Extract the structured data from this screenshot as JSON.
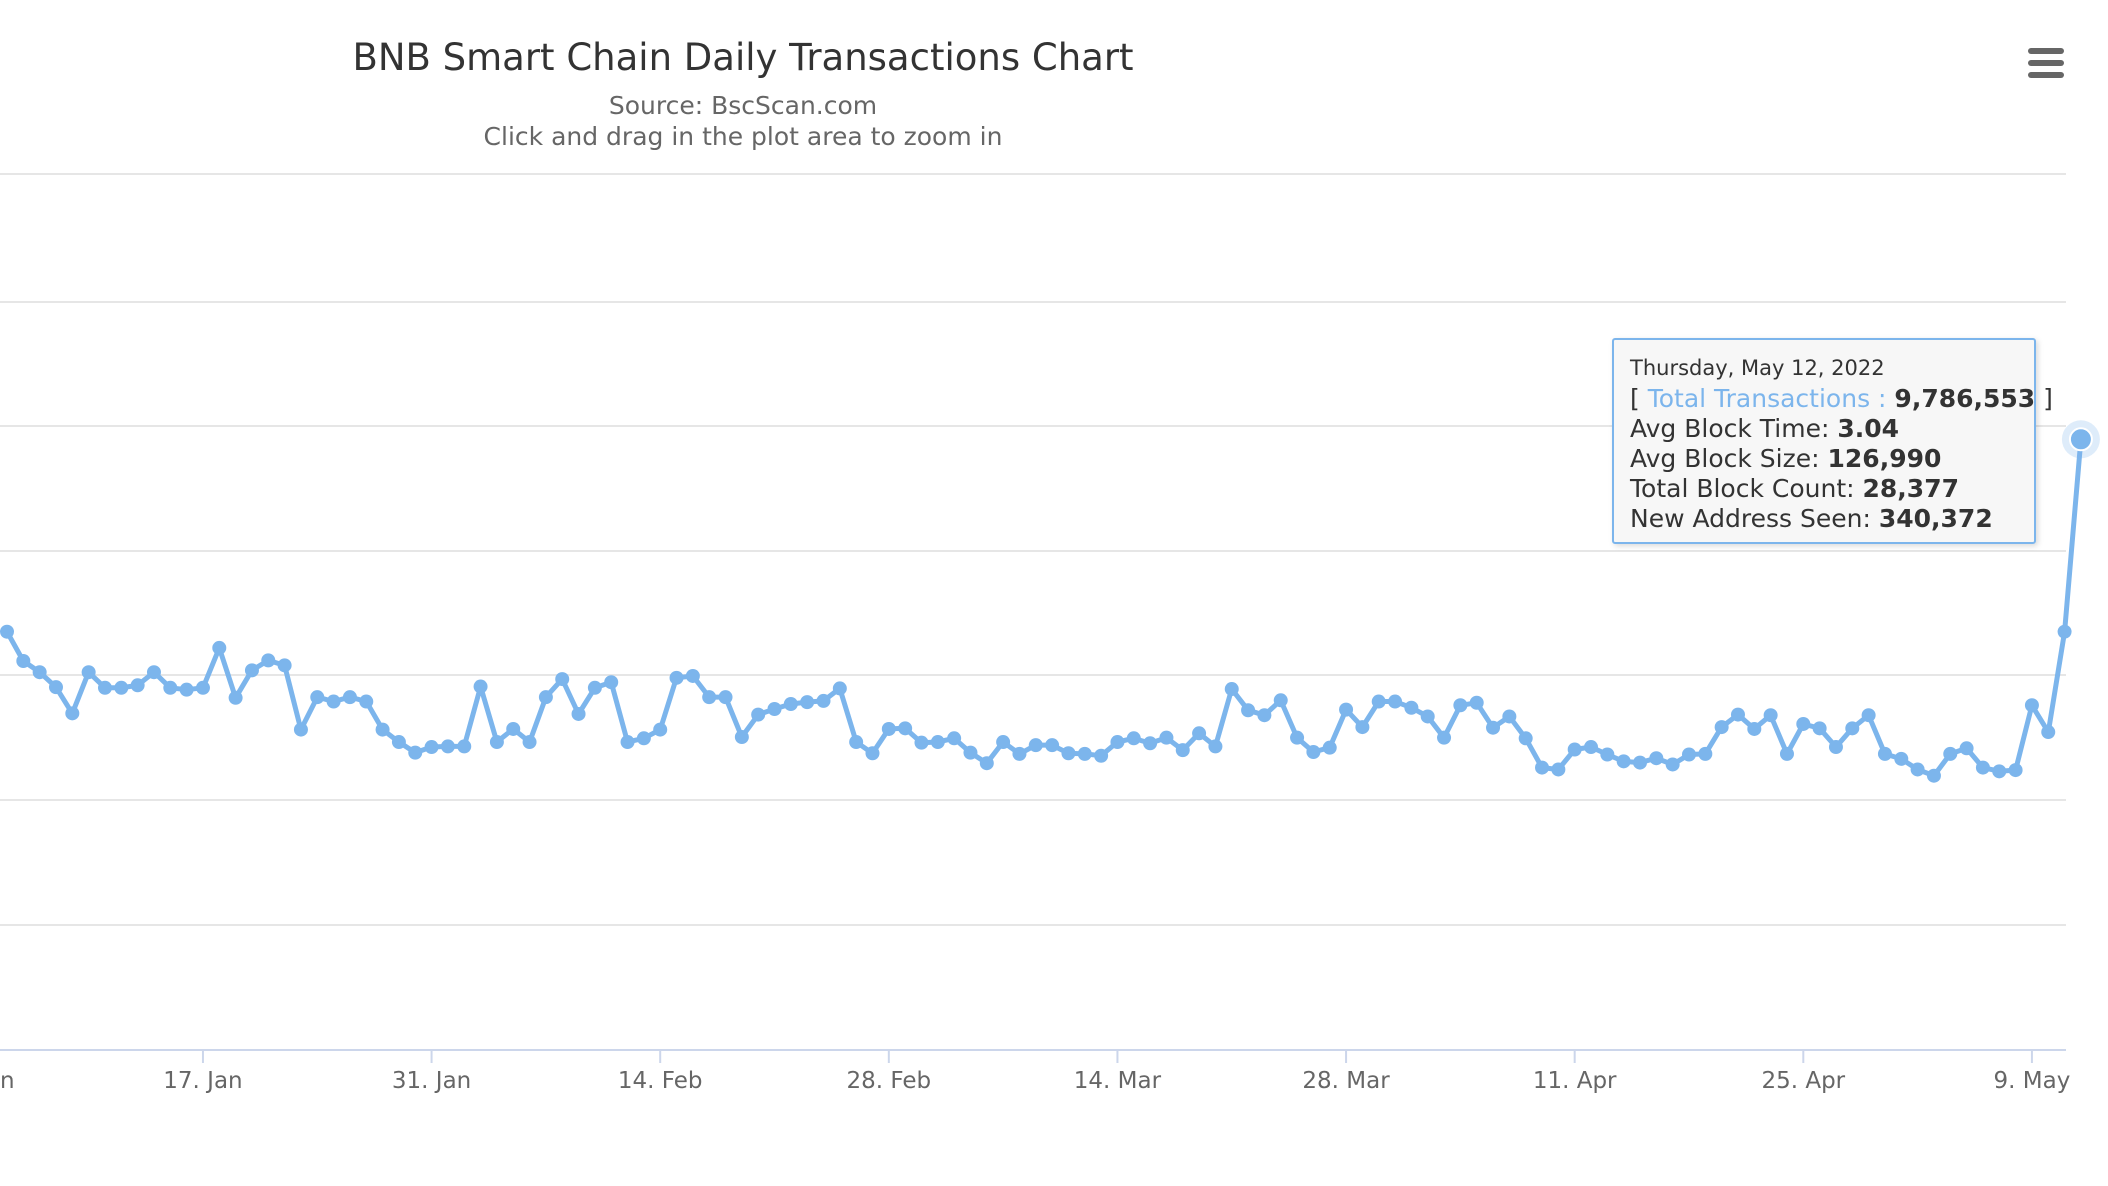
{
  "chart_data": {
    "type": "line",
    "title": "BNB Smart Chain Daily Transactions Chart",
    "subtitle": "Source: BscScan.com",
    "hint": "Click and drag in the plot area to zoom in",
    "xlabel": "",
    "ylabel": "",
    "x_tick_labels": [
      "n",
      "17. Jan",
      "31. Jan",
      "14. Feb",
      "28. Feb",
      "14. Mar",
      "28. Mar",
      "11. Apr",
      "25. Apr",
      "9. May"
    ],
    "grid": true,
    "series": [
      {
        "name": "Total Transactions",
        "color": "#7cb5ec",
        "x_start": "2022-01-05",
        "x_end": "2022-05-12",
        "values": [
          6700000,
          6230000,
          6050000,
          5810000,
          5390000,
          6050000,
          5800000,
          5800000,
          5840000,
          6050000,
          5800000,
          5770000,
          5800000,
          6440000,
          5640000,
          6080000,
          6240000,
          6160000,
          5130000,
          5650000,
          5580000,
          5650000,
          5580000,
          5130000,
          4930000,
          4760000,
          4850000,
          4860000,
          4860000,
          5820000,
          4930000,
          5140000,
          4930000,
          5650000,
          5940000,
          5380000,
          5800000,
          5890000,
          4930000,
          4990000,
          5130000,
          5960000,
          5990000,
          5650000,
          5650000,
          5010000,
          5370000,
          5460000,
          5540000,
          5570000,
          5590000,
          5790000,
          4930000,
          4750000,
          5140000,
          5150000,
          4920000,
          4930000,
          4990000,
          4760000,
          4590000,
          4930000,
          4740000,
          4880000,
          4880000,
          4750000,
          4740000,
          4710000,
          4930000,
          4990000,
          4910000,
          5000000,
          4800000,
          5070000,
          4860000,
          5780000,
          5440000,
          5360000,
          5600000,
          5000000,
          4770000,
          4840000,
          5450000,
          5170000,
          5580000,
          5580000,
          5480000,
          5340000,
          5000000,
          5520000,
          5560000,
          5160000,
          5340000,
          4990000,
          4520000,
          4490000,
          4810000,
          4850000,
          4730000,
          4620000,
          4600000,
          4670000,
          4570000,
          4730000,
          4740000,
          5170000,
          5370000,
          5140000,
          5360000,
          4740000,
          5220000,
          5150000,
          4850000,
          5150000,
          5360000,
          4740000,
          4660000,
          4490000,
          4390000,
          4740000,
          4830000,
          4520000,
          4460000,
          4480000,
          5520000,
          5090000,
          6700000,
          9786553
        ]
      }
    ],
    "tooltip": {
      "date": "Thursday, May 12, 2022",
      "open_bracket": "[",
      "series_label": "Total Transactions :",
      "total_transactions": "9,786,553",
      "close_bracket": "]",
      "avg_block_time_label": "Avg Block Time:",
      "avg_block_time": "3.04",
      "avg_block_size_label": "Avg Block Size:",
      "avg_block_size": "126,990",
      "total_block_count_label": "Total Block Count:",
      "total_block_count": "28,377",
      "new_address_label": "New Address Seen:",
      "new_address_seen": "340,372"
    }
  },
  "ui": {
    "menu_icon": "hamburger-menu-icon"
  }
}
